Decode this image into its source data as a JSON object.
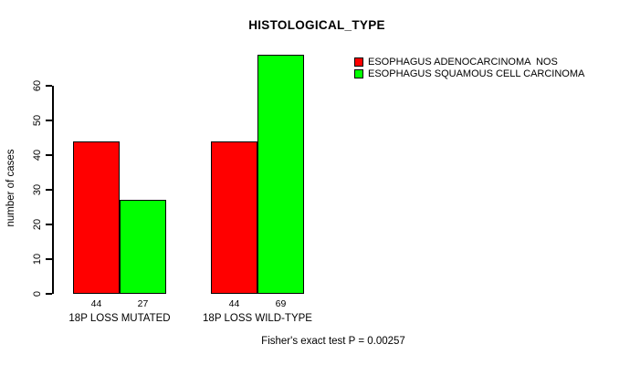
{
  "chart_data": {
    "type": "bar",
    "title": "HISTOLOGICAL_TYPE",
    "xlabel": "",
    "ylabel": "number of cases",
    "categories": [
      "18P LOSS MUTATED",
      "18P LOSS WILD-TYPE"
    ],
    "series": [
      {
        "name": "ESOPHAGUS ADENOCARCINOMA  NOS",
        "color": "#ff0000",
        "values": [
          44,
          44
        ]
      },
      {
        "name": "ESOPHAGUS SQUAMOUS CELL CARCINOMA",
        "color": "#00ff00",
        "values": [
          27,
          69
        ]
      }
    ],
    "bar_value_labels": [
      [
        "44",
        "27"
      ],
      [
        "44",
        "69"
      ]
    ],
    "yticks": [
      0,
      10,
      20,
      30,
      40,
      50,
      60
    ],
    "ylim": [
      0,
      60
    ],
    "grid": false,
    "legend_position": "right",
    "annotation": "Fisher's exact test P = 0.00257"
  },
  "colors": {
    "background": "#ffffff",
    "axis": "#000000",
    "text": "#000000"
  }
}
